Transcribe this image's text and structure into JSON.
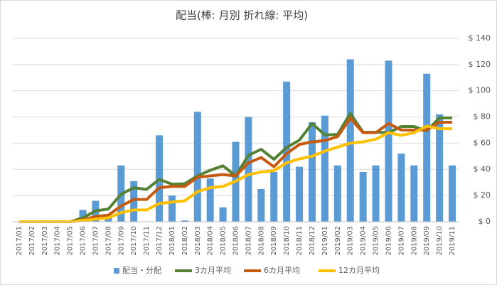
{
  "chart_data": {
    "type": "bar+line",
    "title": "配当(棒: 月別  折れ線: 平均)",
    "categories": [
      "2017/01",
      "2017/02",
      "2017/03",
      "2017/04",
      "2017/05",
      "2017/06",
      "2017/07",
      "2017/08",
      "2017/09",
      "2017/10",
      "2017/11",
      "2017/12",
      "2018/01",
      "2018/02",
      "2018/03",
      "2018/04",
      "2018/05",
      "2018/06",
      "2018/07",
      "2018/08",
      "2018/09",
      "2018/10",
      "2018/11",
      "2018/12",
      "2019/01",
      "2019/02",
      "2019/03",
      "2019/04",
      "2019/05",
      "2019/06",
      "2019/07",
      "2019/08",
      "2019/09",
      "2019/10",
      "2019/11"
    ],
    "series": [
      {
        "name": "配当・分配",
        "type": "bar",
        "color": "#5b9bd5",
        "values": [
          0,
          0,
          0,
          0,
          0,
          9,
          16,
          4,
          43,
          31,
          0,
          66,
          20,
          1,
          84,
          33,
          11,
          61,
          80,
          25,
          38,
          107,
          42,
          76,
          81,
          43,
          124,
          38,
          43,
          123,
          52,
          43,
          113,
          82,
          43
        ]
      },
      {
        "name": "3カ月平均",
        "type": "line",
        "color": "#548235",
        "values": [
          0,
          0,
          0,
          0,
          0,
          3,
          8.3,
          9.7,
          21,
          26,
          24.7,
          32.3,
          28.7,
          29,
          35,
          39.3,
          42.7,
          35,
          50.7,
          55.3,
          47.7,
          56.7,
          62.3,
          75,
          66.3,
          66.7,
          82.7,
          68.3,
          68.3,
          68,
          72.7,
          72.7,
          69.3,
          79.3,
          79.3
        ]
      },
      {
        "name": "6カ月平均",
        "type": "line",
        "color": "#c55a11",
        "values": [
          0,
          0,
          0,
          0,
          0,
          1.5,
          4,
          5,
          12,
          17,
          17,
          26,
          27,
          27,
          34,
          35,
          36,
          35,
          45,
          49,
          42,
          52,
          59,
          61,
          62,
          65,
          79,
          68,
          68,
          75,
          70,
          70,
          70,
          76,
          76
        ]
      },
      {
        "name": "12カ月平均",
        "type": "line",
        "color": "#ffc000",
        "values": [
          0,
          0,
          0,
          0,
          0,
          1,
          2,
          3,
          7,
          9,
          9,
          14,
          15,
          16,
          23,
          26,
          27,
          31,
          36,
          38,
          39,
          45,
          48,
          50,
          54,
          57,
          60,
          61,
          63,
          68,
          66,
          68,
          73,
          71,
          71
        ]
      }
    ],
    "ylim": [
      0,
      140
    ],
    "yticks": [
      {
        "value": 0,
        "label": "$ 0"
      },
      {
        "value": 20,
        "label": "$ 20"
      },
      {
        "value": 40,
        "label": "$ 40"
      },
      {
        "value": 60,
        "label": "$ 60"
      },
      {
        "value": 80,
        "label": "$ 80"
      },
      {
        "value": 100,
        "label": "$ 100"
      },
      {
        "value": 120,
        "label": "$ 120"
      },
      {
        "value": 140,
        "label": "$ 140"
      }
    ],
    "grid": true,
    "legend": "bottom"
  }
}
